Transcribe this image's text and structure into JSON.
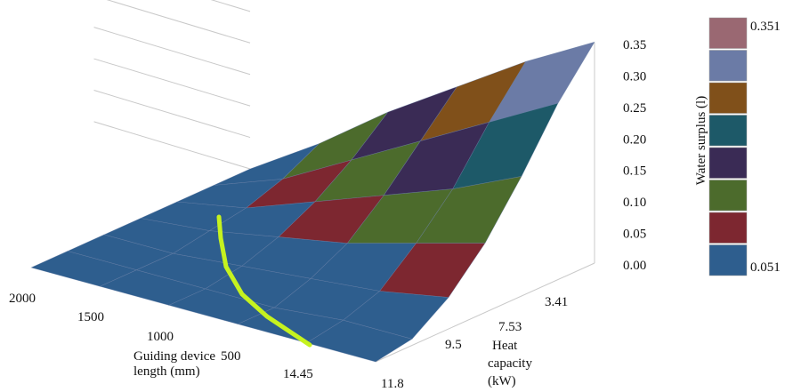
{
  "chart_data": {
    "type": "surface",
    "title": "",
    "x_axis": {
      "label_line1": "Guiding device",
      "label_line2": "length (mm)",
      "ticks": [
        "2000",
        "1500",
        "1000",
        "500"
      ]
    },
    "y_axis": {
      "label_line1": "Heat",
      "label_line2": "capacity",
      "label_line3": "(kW)",
      "ticks": [
        "14.45",
        "11.8",
        "9.5",
        "7.53",
        "3.41"
      ]
    },
    "z_axis": {
      "label": "",
      "ticks": [
        "0.00",
        "0.05",
        "0.10",
        "0.15",
        "0.20",
        "0.25",
        "0.30",
        "0.35"
      ],
      "zlim": [
        0,
        0.35
      ]
    },
    "legend": {
      "title": "Water surplus (l)",
      "max_label": "0.351",
      "min_label": "0.051",
      "colors": [
        "#9a6872",
        "#6b7ba6",
        "#80501a",
        "#1d5968",
        "#3a2b55",
        "#4c6b2c",
        "#7d2730",
        "#2e5e8e"
      ]
    },
    "surface_z": [
      [
        0.0,
        0.0,
        0.0,
        0.0,
        0.0,
        0.0,
        0.0
      ],
      [
        0.0,
        0.0,
        0.0,
        0.01,
        0.02,
        0.04,
        0.07
      ],
      [
        0.0,
        0.0,
        0.01,
        0.03,
        0.06,
        0.1,
        0.15
      ],
      [
        0.0,
        0.0,
        0.02,
        0.05,
        0.1,
        0.16,
        0.22
      ],
      [
        0.0,
        0.01,
        0.03,
        0.08,
        0.14,
        0.22,
        0.29
      ],
      [
        0.0,
        0.01,
        0.05,
        0.11,
        0.19,
        0.28,
        0.351
      ]
    ],
    "surface_colors": [
      "#2e5e8e",
      "#7d2730",
      "#4c6b2c",
      "#3a2b55",
      "#1d5968",
      "#80501a",
      "#6b7ba6",
      "#9a6872"
    ],
    "surface_levels": [
      0.051,
      0.09,
      0.13,
      0.17,
      0.21,
      0.25,
      0.3,
      0.351
    ],
    "contour_color": "#c6f21f"
  }
}
